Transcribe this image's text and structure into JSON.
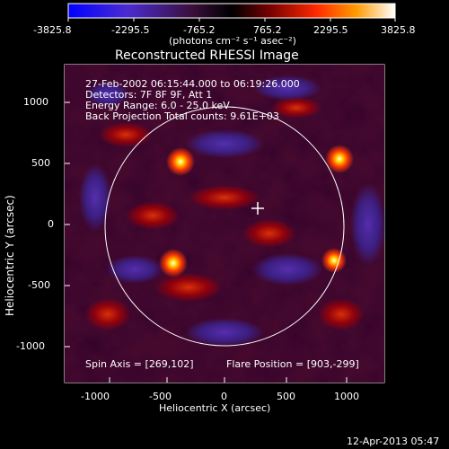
{
  "colorbar": {
    "tick_labels": [
      "-3825.8",
      "-2295.5",
      "-765.2",
      "765.2",
      "2295.5",
      "3825.8"
    ],
    "units": "(photons cm⁻² s⁻¹ asec⁻²)"
  },
  "plot": {
    "title": "Reconstructed RHESSI Image",
    "info_lines": [
      "27-Feb-2002 06:15:44.000 to 06:19:26.000",
      "Detectors: 7F 8F 9F, Att 1",
      "Energy Range: 6.0 - 25.0 keV",
      "Back Projection    Total counts: 9.61E+03"
    ],
    "spin_axis": "Spin Axis = [269,102]",
    "flare_position": "Flare Position = [903,-299]",
    "xlabel": "Heliocentric X (arcsec)",
    "ylabel": "Heliocentric Y (arcsec)",
    "x_ticks": [
      "-1000",
      "-500",
      "0",
      "500",
      "1000"
    ],
    "y_ticks": [
      "1000",
      "500",
      "0",
      "-500",
      "-1000"
    ]
  },
  "footer": {
    "date": "12-Apr-2013 05:47"
  },
  "image_style": {
    "background": "#000000",
    "color_low": "#3b2aa8",
    "color_high": "#ff3b00"
  }
}
